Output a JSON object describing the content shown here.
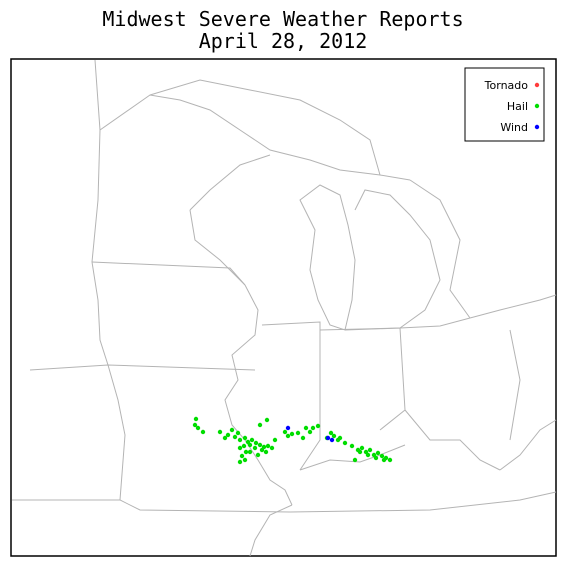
{
  "header": {
    "title": [
      "Midwest Severe Weather Reports",
      "April 28, 2012"
    ]
  },
  "legend": [
    {
      "label": "Tornado",
      "color": "#ff3c3c"
    },
    {
      "label": "Hail",
      "color": "#00dd00"
    },
    {
      "label": "Wind",
      "color": "#0000ff"
    }
  ]
}
